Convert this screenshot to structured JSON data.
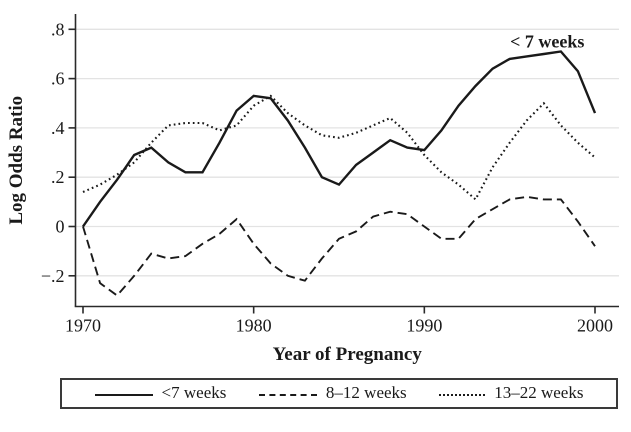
{
  "chart_data": {
    "type": "line",
    "title": "",
    "xlabel": "Year of Pregnancy",
    "ylabel": "Log Odds Ratio",
    "grid": "horizontal",
    "legend_position": "bottom",
    "xlim": [
      1969.4,
      2001.5
    ],
    "ylim": [
      -0.32,
      0.86
    ],
    "x_ticks": [
      1970,
      1980,
      1990,
      2000
    ],
    "y_ticks": [
      -0.2,
      0,
      0.2,
      0.4,
      0.6,
      0.8
    ],
    "y_tick_labels": [
      "−.2",
      "0",
      ".2",
      ".4",
      ".6",
      ".8"
    ],
    "x": [
      1970,
      1971,
      1972,
      1973,
      1974,
      1975,
      1976,
      1977,
      1978,
      1979,
      1980,
      1981,
      1982,
      1983,
      1984,
      1985,
      1986,
      1987,
      1988,
      1989,
      1990,
      1991,
      1992,
      1993,
      1994,
      1995,
      1996,
      1997,
      1998,
      1999,
      2000
    ],
    "series": [
      {
        "name": "<7 weeks",
        "style": "solid",
        "color": "#1a1a1a",
        "values": [
          0.0,
          0.1,
          0.19,
          0.29,
          0.32,
          0.26,
          0.22,
          0.22,
          0.34,
          0.47,
          0.53,
          0.52,
          0.43,
          0.32,
          0.2,
          0.17,
          0.25,
          0.3,
          0.35,
          0.32,
          0.31,
          0.39,
          0.49,
          0.57,
          0.64,
          0.68,
          0.69,
          0.7,
          0.71,
          0.63,
          0.46
        ]
      },
      {
        "name": "8–12 weeks",
        "style": "dashed",
        "color": "#1a1a1a",
        "values": [
          0.0,
          -0.23,
          -0.28,
          -0.2,
          -0.11,
          -0.13,
          -0.12,
          -0.07,
          -0.03,
          0.03,
          -0.07,
          -0.15,
          -0.2,
          -0.22,
          -0.13,
          -0.05,
          -0.02,
          0.04,
          0.06,
          0.05,
          0.0,
          -0.05,
          -0.05,
          0.03,
          0.07,
          0.11,
          0.12,
          0.11,
          0.11,
          0.02,
          -0.08
        ]
      },
      {
        "name": "13–22 weeks",
        "style": "dotted",
        "color": "#1a1a1a",
        "values": [
          0.14,
          0.17,
          0.21,
          0.26,
          0.34,
          0.41,
          0.42,
          0.42,
          0.39,
          0.41,
          0.49,
          0.53,
          0.46,
          0.41,
          0.37,
          0.36,
          0.38,
          0.41,
          0.44,
          0.38,
          0.29,
          0.22,
          0.17,
          0.11,
          0.24,
          0.34,
          0.43,
          0.5,
          0.41,
          0.34,
          0.28
        ]
      }
    ],
    "annotation": {
      "text": "< 7 weeks",
      "x": 1997.2,
      "y": 0.75,
      "color": "#e72e66"
    },
    "axis_color": "#2a2a2a",
    "gridline_color": "#e3e3e3"
  },
  "legend": {
    "entries": [
      "<7 weeks",
      "8–12 weeks",
      "13–22 weeks"
    ]
  }
}
